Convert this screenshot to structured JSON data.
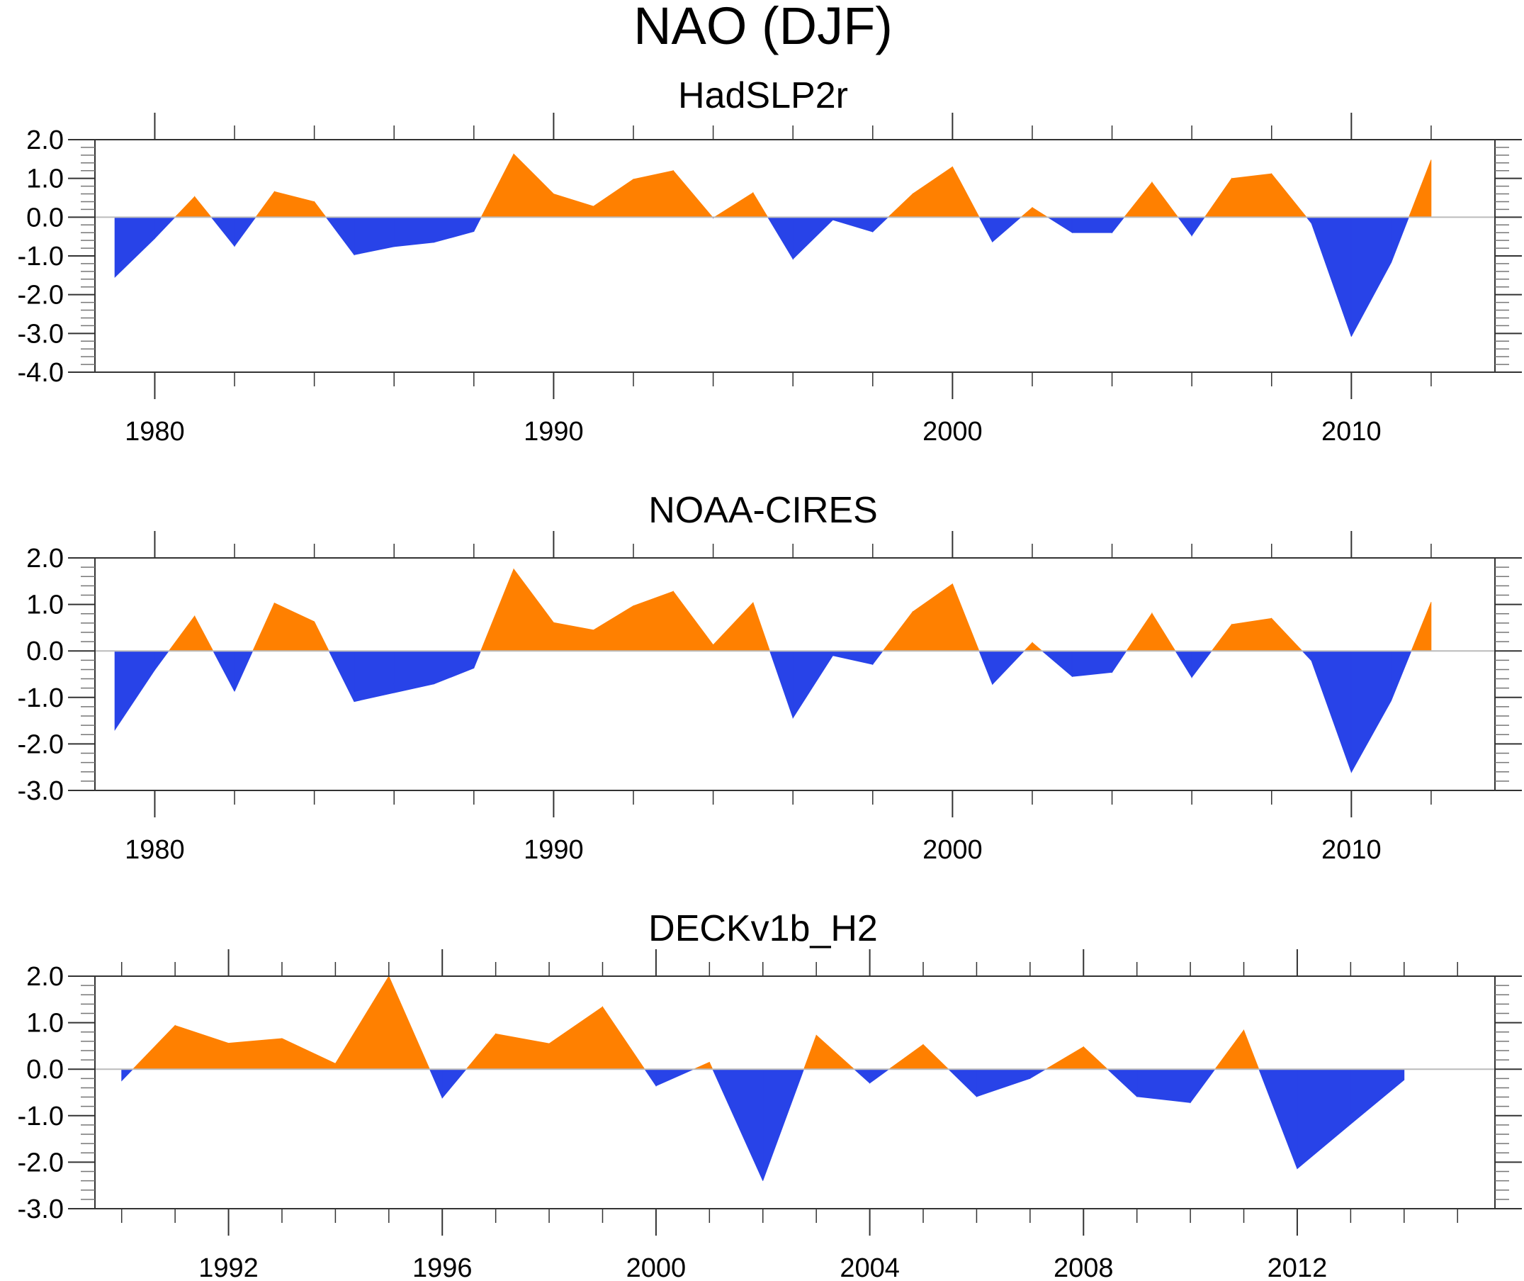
{
  "chart_data": {
    "type": "area",
    "title": "NAO (DJF)",
    "colors": {
      "positive": "#ff8000",
      "negative": "#2843e8",
      "axis": "#333333",
      "zero_line": "#bbbbbb"
    },
    "panels": [
      {
        "subtitle": "HadSLP2r",
        "xlim": [
          1978.5,
          2013.6
        ],
        "ylim": [
          -4.0,
          2.0
        ],
        "yticks": [
          2.0,
          1.0,
          0.0,
          -1.0,
          -2.0,
          -3.0,
          -4.0
        ],
        "ytick_labels": [
          "2.0",
          "1.0",
          "0.0",
          "-1.0",
          "-2.0",
          "-3.0",
          "-4.0"
        ],
        "xticks_major": [
          1980,
          1990,
          2000,
          2010
        ],
        "xtick_labels": [
          "1980",
          "1990",
          "2000",
          "2010"
        ],
        "xtick_minor_step": 2,
        "x": [
          1979,
          1980,
          1981,
          1982,
          1983,
          1984,
          1985,
          1986,
          1987,
          1988,
          1989,
          1990,
          1991,
          1992,
          1993,
          1994,
          1995,
          1996,
          1997,
          1998,
          1999,
          2000,
          2001,
          2002,
          2003,
          2004,
          2005,
          2006,
          2007,
          2008,
          2009,
          2010,
          2011,
          2012
        ],
        "values": [
          -1.55,
          -0.55,
          0.53,
          -0.75,
          0.66,
          0.4,
          -0.97,
          -0.76,
          -0.65,
          -0.37,
          1.63,
          0.6,
          0.28,
          0.98,
          1.2,
          -0.02,
          0.63,
          -1.08,
          -0.07,
          -0.38,
          0.6,
          1.3,
          -0.64,
          0.25,
          -0.4,
          -0.4,
          0.9,
          -0.48,
          1.0,
          1.12,
          -0.16,
          -3.08,
          -1.17,
          1.48
        ]
      },
      {
        "subtitle": "NOAA-CIRES",
        "xlim": [
          1978.5,
          2013.6
        ],
        "ylim": [
          -3.0,
          2.0
        ],
        "yticks": [
          2.0,
          1.0,
          0.0,
          -1.0,
          -2.0,
          -3.0
        ],
        "ytick_labels": [
          "2.0",
          "1.0",
          "0.0",
          "-1.0",
          "-2.0",
          "-3.0"
        ],
        "xticks_major": [
          1980,
          1990,
          2000,
          2010
        ],
        "xtick_labels": [
          "1980",
          "1990",
          "2000",
          "2010"
        ],
        "xtick_minor_step": 2,
        "x": [
          1979,
          1980,
          1981,
          1982,
          1983,
          1984,
          1985,
          1986,
          1987,
          1988,
          1989,
          1990,
          1991,
          1992,
          1993,
          1994,
          1995,
          1996,
          1997,
          1998,
          1999,
          2000,
          2001,
          2002,
          2003,
          2004,
          2005,
          2006,
          2007,
          2008,
          2009,
          2010,
          2011,
          2012
        ],
        "values": [
          -1.7,
          -0.41,
          0.75,
          -0.87,
          1.03,
          0.63,
          -1.09,
          -0.9,
          -0.71,
          -0.37,
          1.76,
          0.61,
          0.45,
          0.97,
          1.28,
          0.13,
          1.04,
          -1.44,
          -0.1,
          -0.29,
          0.84,
          1.44,
          -0.72,
          0.18,
          -0.55,
          -0.46,
          0.81,
          -0.57,
          0.57,
          0.7,
          -0.21,
          -2.61,
          -1.07,
          1.05
        ]
      },
      {
        "subtitle": "DECKv1b_H2",
        "xlim": [
          1989.5,
          2015.7
        ],
        "ylim": [
          -3.0,
          2.0
        ],
        "yticks": [
          2.0,
          1.0,
          0.0,
          -1.0,
          -2.0,
          -3.0
        ],
        "ytick_labels": [
          "2.0",
          "1.0",
          "0.0",
          "-1.0",
          "-2.0",
          "-3.0"
        ],
        "xticks_major": [
          1992,
          1996,
          2000,
          2004,
          2008,
          2012
        ],
        "xtick_labels": [
          "1992",
          "1996",
          "2000",
          "2004",
          "2008",
          "2012"
        ],
        "xtick_minor_step": 1,
        "x": [
          1990,
          1991,
          1992,
          1993,
          1994,
          1995,
          1996,
          1997,
          1998,
          1999,
          2000,
          2001,
          2002,
          2003,
          2004,
          2005,
          2006,
          2007,
          2008,
          2009,
          2010,
          2011,
          2012,
          2013,
          2014
        ],
        "values": [
          -0.25,
          0.94,
          0.56,
          0.66,
          0.12,
          2.0,
          -0.62,
          0.76,
          0.55,
          1.34,
          -0.36,
          0.15,
          -2.4,
          0.73,
          -0.3,
          0.53,
          -0.59,
          -0.2,
          0.48,
          -0.59,
          -0.72,
          0.84,
          -2.14,
          -1.18,
          -0.23
        ]
      }
    ]
  }
}
